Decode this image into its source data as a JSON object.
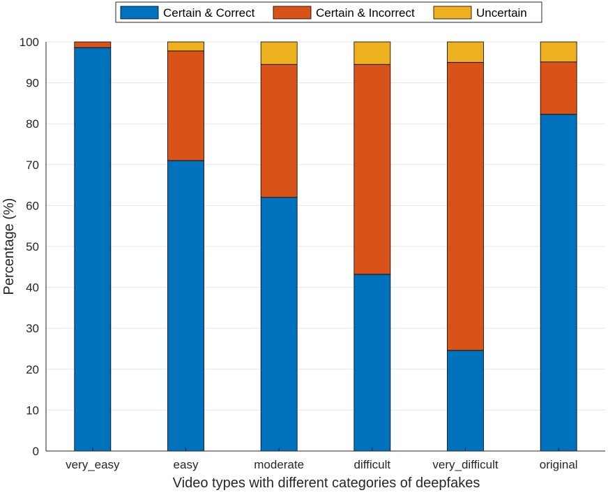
{
  "chart_data": {
    "type": "bar",
    "stacked": true,
    "categories": [
      "very_easy",
      "easy",
      "moderate",
      "difficult",
      "very_difficult",
      "original"
    ],
    "series": [
      {
        "name": "Certain & Correct",
        "color": "#0072BD",
        "values": [
          98.6,
          71.0,
          62.0,
          43.2,
          24.6,
          82.3
        ]
      },
      {
        "name": "Certain & Incorrect",
        "color": "#D95319",
        "values": [
          1.4,
          26.8,
          32.5,
          51.3,
          70.4,
          12.8
        ]
      },
      {
        "name": "Uncertain",
        "color": "#EDB120",
        "values": [
          0.0,
          2.2,
          5.5,
          5.5,
          5.0,
          4.9
        ]
      }
    ],
    "xlabel": "Video types with different categories of deepfakes",
    "ylabel": "Percentage (%)",
    "ylim": [
      0,
      100
    ],
    "yticks": [
      "0",
      "10",
      "20",
      "30",
      "40",
      "50",
      "60",
      "70",
      "80",
      "90",
      "100"
    ],
    "grid": true,
    "legend_position": "top-center, horizontal"
  }
}
